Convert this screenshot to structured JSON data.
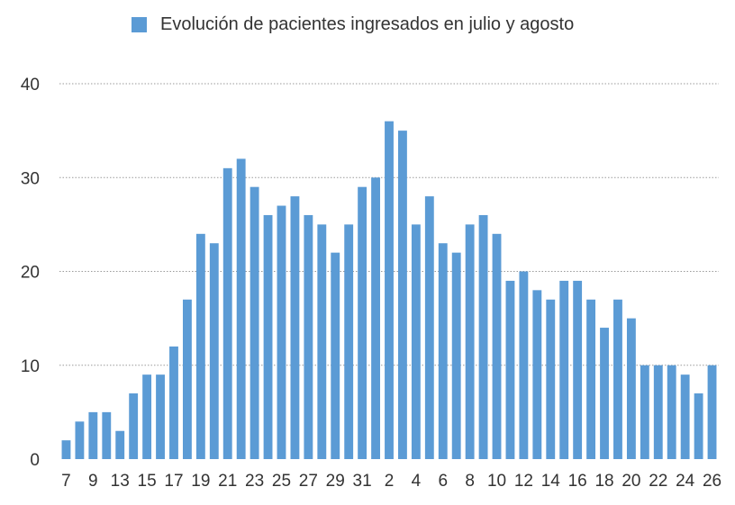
{
  "colors": {
    "bar": "#5b9bd5",
    "grid": "#9a9a9a",
    "text": "#333333"
  },
  "legend": {
    "label": "Evolución de pacientes ingresados en julio y agosto"
  },
  "chart_data": {
    "type": "bar",
    "legend_position": "top",
    "grid": true,
    "ylim": [
      0,
      40
    ],
    "yticks": [
      0,
      10,
      20,
      30,
      40
    ],
    "categories": [
      "7",
      "8",
      "9",
      "10",
      "13",
      "14",
      "15",
      "16",
      "17",
      "18",
      "19",
      "20",
      "21",
      "22",
      "23",
      "24",
      "25",
      "26",
      "27",
      "28",
      "29",
      "30",
      "31",
      "1",
      "2",
      "3",
      "4",
      "5",
      "6",
      "7",
      "8",
      "9",
      "10",
      "11",
      "12",
      "13",
      "14",
      "15",
      "16",
      "17",
      "18",
      "19",
      "20",
      "21",
      "22",
      "23",
      "24",
      "25",
      "26"
    ],
    "xtick_labels": [
      "7",
      "",
      "9",
      "",
      "13",
      "",
      "15",
      "",
      "17",
      "",
      "19",
      "",
      "21",
      "",
      "23",
      "",
      "25",
      "",
      "27",
      "",
      "29",
      "",
      "31",
      "",
      "2",
      "",
      "4",
      "",
      "6",
      "",
      "8",
      "",
      "10",
      "",
      "12",
      "",
      "14",
      "",
      "16",
      "",
      "18",
      "",
      "20",
      "",
      "22",
      "",
      "24",
      "",
      "26"
    ],
    "series": [
      {
        "name": "Evolución de pacientes ingresados en julio y agosto",
        "values": [
          2,
          4,
          5,
          5,
          3,
          7,
          9,
          9,
          12,
          17,
          24,
          23,
          31,
          32,
          29,
          26,
          27,
          28,
          26,
          25,
          22,
          25,
          29,
          30,
          36,
          35,
          25,
          28,
          23,
          22,
          25,
          26,
          24,
          19,
          20,
          18,
          17,
          19,
          19,
          17,
          14,
          17,
          15,
          10,
          10,
          10,
          9,
          7,
          10
        ]
      }
    ]
  }
}
